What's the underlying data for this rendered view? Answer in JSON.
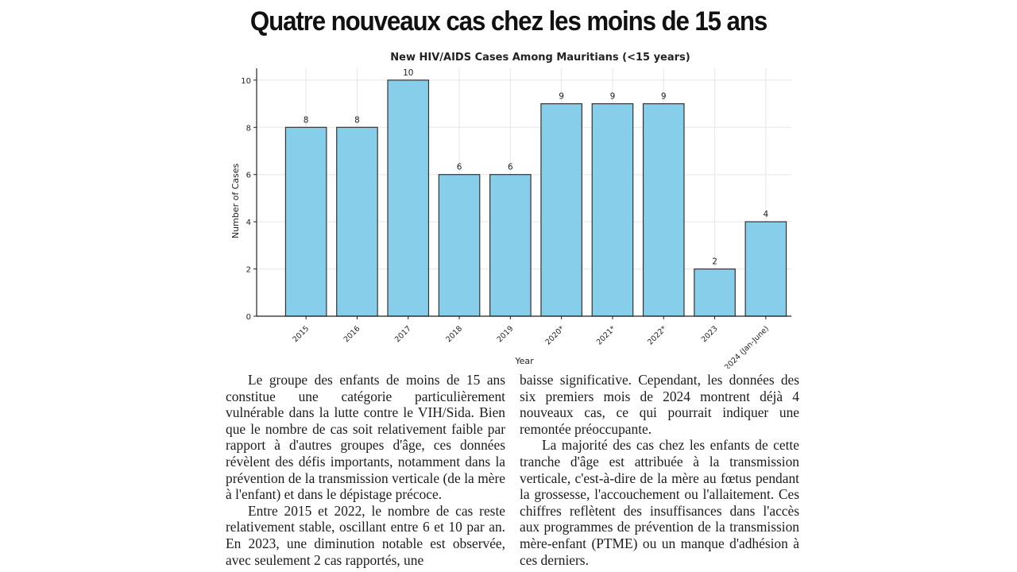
{
  "article": {
    "headline": "Quatre nouveaux cas chez les moins de 15 ans",
    "paragraphs_left": [
      "Le groupe des enfants de moins de 15 ans constitue une catégorie particulièrement vulnérable dans la lutte contre le VIH/Sida. Bien que le nombre de cas soit relativement faible par rapport à d'autres groupes d'âge, ces données révèlent des défis importants, notamment dans la prévention de la transmission verticale (de la mère à l'enfant) et dans le dépistage précoce.",
      "Entre 2015 et 2022, le nombre de cas reste relativement stable, oscillant entre 6 et 10 par an. En 2023, une diminution notable est observée, avec seulement 2 cas rapportés, une"
    ],
    "paragraphs_right": [
      "baisse significative. Cependant, les données des six premiers mois de 2024 montrent déjà 4 nouveaux cas, ce qui pourrait indiquer une remontée préoccupante.",
      "La majorité des cas chez les enfants de cette tranche d'âge est attribuée à la transmission verticale, c'est-à-dire de la mère au fœtus pendant la grossesse, l'accouchement ou l'allaitement. Ces chiffres reflètent des insuffisances dans l'accès aux programmes de prévention de la transmission mère-enfant (PTME) ou un manque d'adhésion à ces derniers."
    ]
  },
  "chart_data": {
    "type": "bar",
    "title": "New HIV/AIDS Cases Among Mauritians (<15 years)",
    "xlabel": "Year",
    "ylabel": "Number of Cases",
    "categories": [
      "2015",
      "2016",
      "2017",
      "2018",
      "2019",
      "2020*",
      "2021*",
      "2022*",
      "2023",
      "2024 (Jan-June)"
    ],
    "values": [
      8,
      8,
      10,
      6,
      6,
      9,
      9,
      9,
      2,
      4
    ],
    "yticks": [
      0,
      2,
      4,
      6,
      8,
      10
    ],
    "ylim": [
      0,
      10.5
    ],
    "grid": true,
    "bar_color": "#87ceeb",
    "edge_color": "#333333",
    "grid_color": "#e6e6e6"
  }
}
